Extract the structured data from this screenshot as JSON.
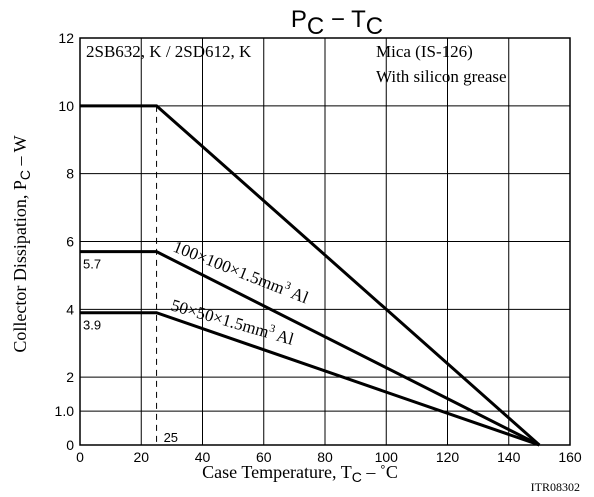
{
  "chart_data": {
    "type": "line",
    "title": {
      "main": "P",
      "sub1": "C",
      "mid": " − T",
      "sub2": "C"
    },
    "xlabel": {
      "main": "Case Temperature, T",
      "sub": "C",
      "tail": " – ˚C"
    },
    "ylabel": {
      "main": "Collector Dissipation, P",
      "sub": "C",
      "tail": " – W"
    },
    "xlim": [
      0,
      160
    ],
    "ylim": [
      0,
      12
    ],
    "grid": true,
    "x_ticks": [
      0,
      20,
      40,
      60,
      80,
      100,
      120,
      140,
      160
    ],
    "y_ticks": [
      {
        "value": 0,
        "label": "0"
      },
      {
        "value": 1,
        "label": "1.0"
      },
      {
        "value": 2,
        "label": "2"
      },
      {
        "value": 4,
        "label": "4"
      },
      {
        "value": 6,
        "label": "6"
      },
      {
        "value": 8,
        "label": "8"
      },
      {
        "value": 10,
        "label": "10"
      },
      {
        "value": 12,
        "label": "12"
      }
    ],
    "series": [
      {
        "x": [
          0,
          25,
          150
        ],
        "y": [
          10,
          10,
          0
        ]
      },
      {
        "x": [
          0,
          25,
          150
        ],
        "y": [
          5.7,
          5.7,
          0
        ]
      },
      {
        "x": [
          0,
          25,
          150
        ],
        "y": [
          3.9,
          3.9,
          0
        ]
      }
    ],
    "reference_line": {
      "x": 25,
      "label": "25"
    },
    "value_labels": [
      {
        "text": "5.7",
        "y": 5.7
      },
      {
        "text": "3.9",
        "y": 3.9
      }
    ],
    "curve_labels": [
      {
        "prefix": "100×100×1.5mm",
        "sup": "3",
        "suffix": " Al"
      },
      {
        "prefix": "50×50×1.5mm",
        "sup": "3",
        "suffix": " Al"
      }
    ],
    "annotations": {
      "part_numbers": "2SB632, K / 2SD612, K",
      "mount_line1": "Mica (IS-126)",
      "mount_line2": "With silicon grease"
    },
    "code": "ITR08302"
  }
}
